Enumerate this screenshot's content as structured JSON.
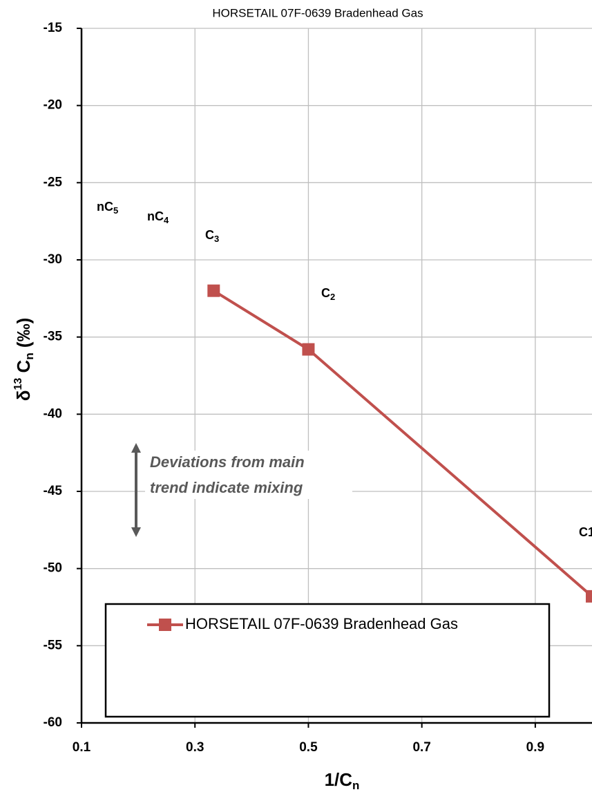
{
  "chart_data": {
    "type": "line",
    "title": "HORSETAIL 07F-0639 Bradenhead Gas",
    "xlabel_parts": [
      "1/C",
      "n"
    ],
    "ylabel_parts": [
      "δ",
      "13",
      " C",
      "n",
      " (‰)"
    ],
    "x": [
      0.333,
      0.5,
      1.0
    ],
    "series": [
      {
        "name": "HORSETAIL 07F-0639 Bradenhead Gas",
        "color": "#c0504d",
        "values": [
          -32.0,
          -35.8,
          -51.8
        ]
      }
    ],
    "xlim": [
      0.1,
      1.0
    ],
    "xticks": [
      0.1,
      0.3,
      0.5,
      0.7,
      0.9
    ],
    "ylim": [
      -60,
      -15
    ],
    "yticks": [
      -60,
      -55,
      -50,
      -45,
      -40,
      -35,
      -30,
      -25,
      -20,
      -15
    ],
    "grid": true,
    "legend": "bottom",
    "labels": [
      {
        "text": "nC",
        "sub": "5"
      },
      {
        "text": "nC",
        "sub": "4"
      },
      {
        "text": "C",
        "sub": "3"
      },
      {
        "text": "C",
        "sub": "2"
      },
      {
        "text": "C1"
      }
    ],
    "annotation": [
      "Deviations from main",
      "trend indicate mixing"
    ]
  }
}
